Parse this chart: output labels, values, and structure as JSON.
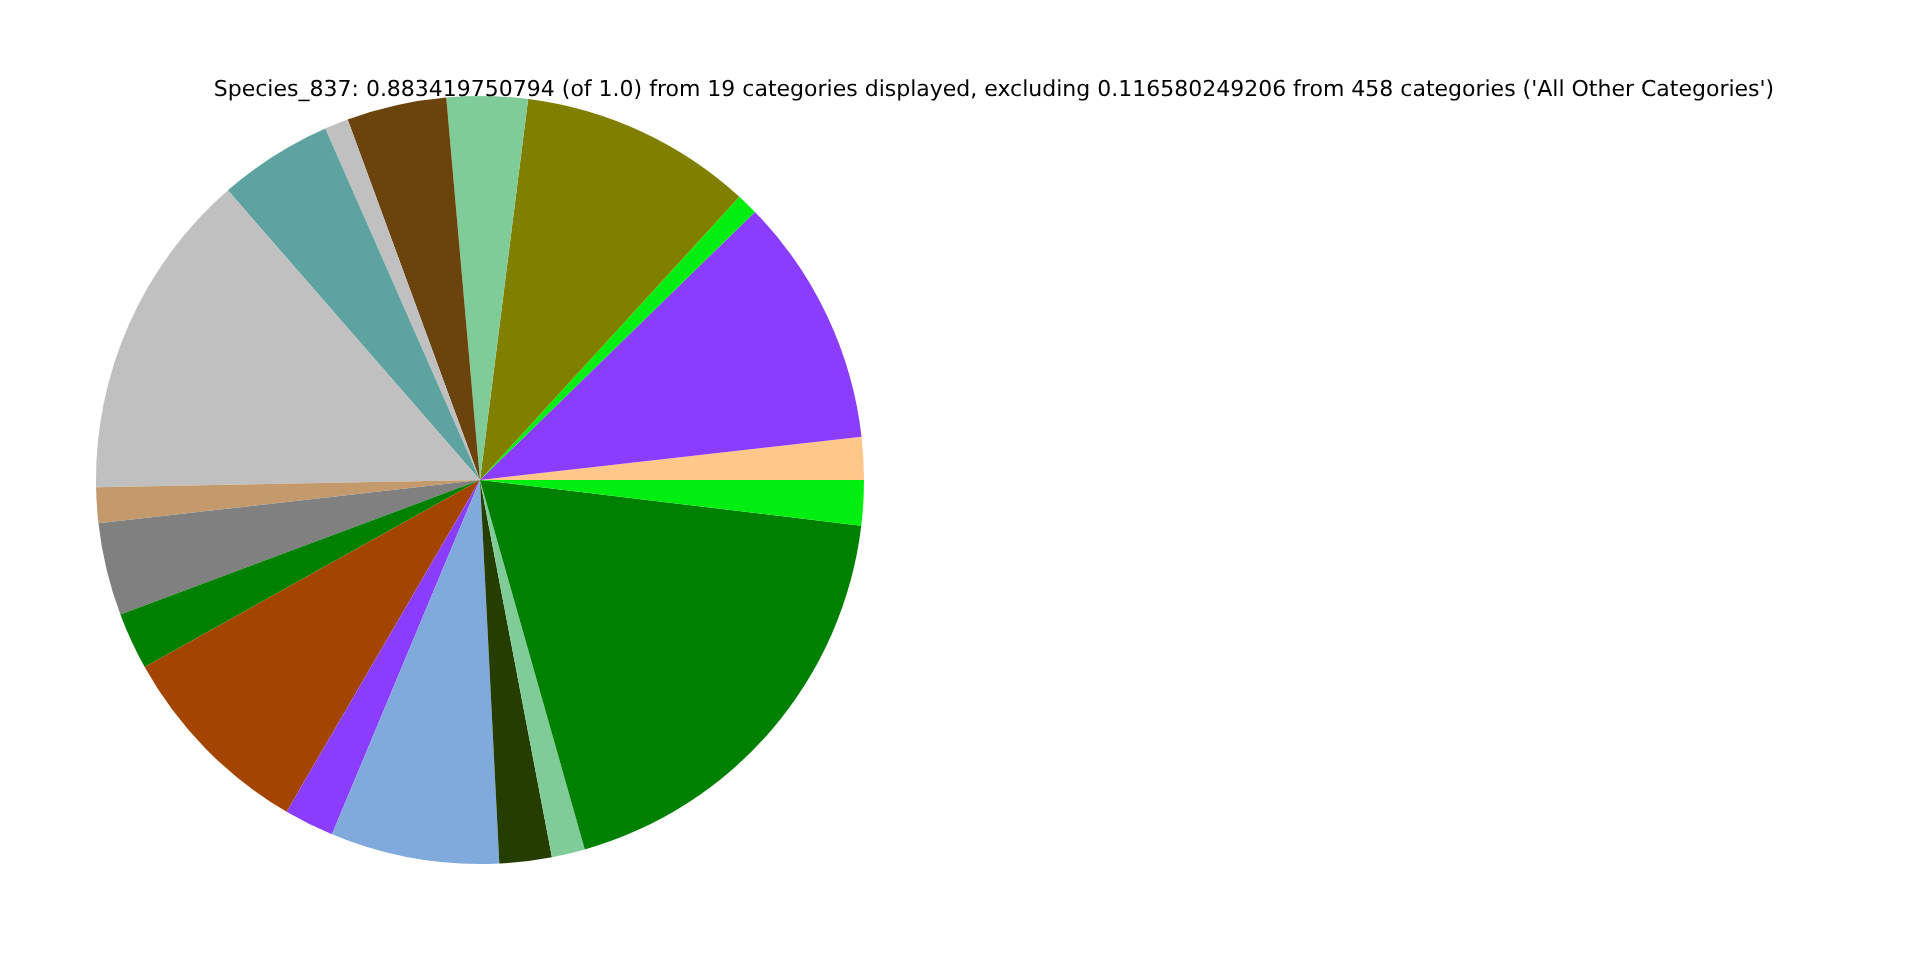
{
  "chart_data": {
    "type": "pie",
    "title": "Species_837: 0.883419750794 (of 1.0) from 19 categories displayed, excluding 0.116580249206 from 458 categories ('All Other Categories')",
    "categories": [
      null,
      null,
      null,
      null,
      null,
      null,
      null,
      null,
      null,
      null,
      null,
      null,
      null,
      null,
      null,
      null,
      null,
      null,
      null
    ],
    "values": [
      1.8,
      10.5,
      0.9,
      9.8,
      3.4,
      4.2,
      1.0,
      4.8,
      13.9,
      1.5,
      3.9,
      2.4,
      8.5,
      2.1,
      7.1,
      2.2,
      1.4,
      18.7,
      1.9
    ],
    "colors": [
      "#ffc78a",
      "#8b3dff",
      "#00ef10",
      "#808000",
      "#80cc99",
      "#6b430d",
      "#c0c0c0",
      "#5fa3a0",
      "#c0c0c0",
      "#c49a6c",
      "#808080",
      "#008000",
      "#a34400",
      "#8b3dff",
      "#7faadb",
      "#263d00",
      "#80cc99",
      "#008000",
      "#00ef10"
    ]
  }
}
